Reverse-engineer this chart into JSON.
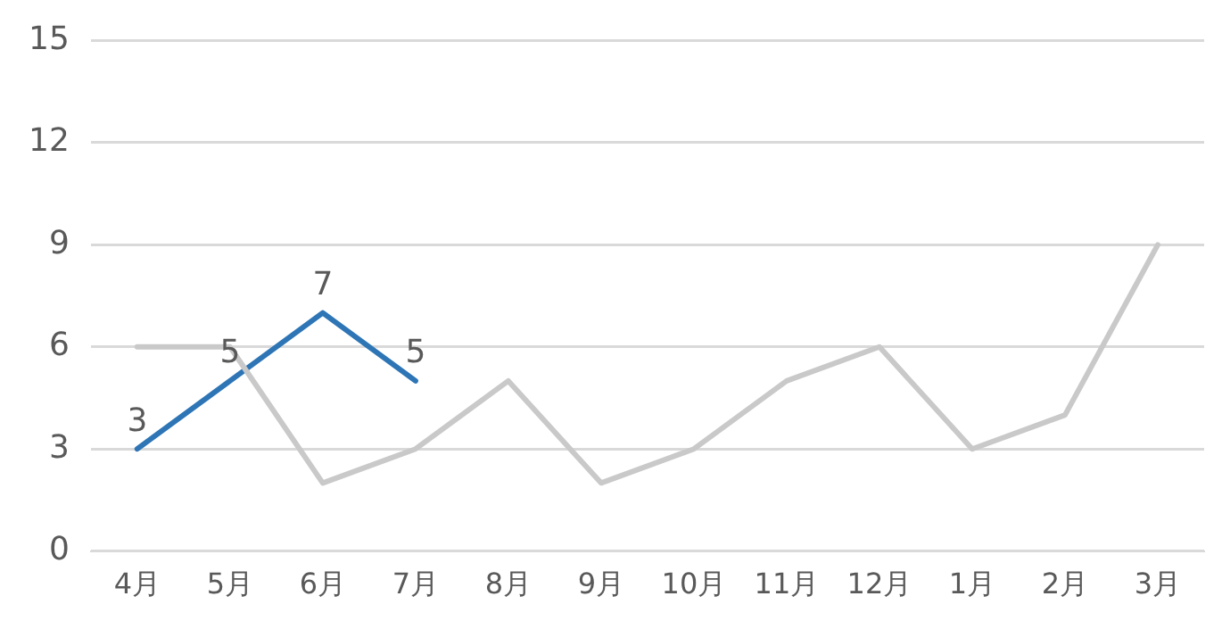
{
  "chart_data": {
    "type": "line",
    "categories": [
      "4月",
      "5月",
      "6月",
      "7月",
      "8月",
      "9月",
      "10月",
      "11月",
      "12月",
      "1月",
      "2月",
      "3月"
    ],
    "series": [
      {
        "color": "#c9c9c9",
        "values": [
          6,
          6,
          2,
          3,
          5,
          2,
          3,
          5,
          6,
          3,
          4,
          9
        ]
      },
      {
        "color": "#2e75b6",
        "values": [
          3,
          5,
          7,
          5,
          null,
          null,
          null,
          null,
          null,
          null,
          null,
          null
        ],
        "value_labels": [
          "3",
          "5",
          "7",
          "5",
          null,
          null,
          null,
          null,
          null,
          null,
          null,
          null
        ]
      }
    ],
    "ylim": [
      0,
      15
    ],
    "yticks": [
      0,
      3,
      6,
      9,
      12,
      15
    ],
    "grid": "y",
    "legend": false,
    "marker": "none",
    "line_style": "solid"
  }
}
